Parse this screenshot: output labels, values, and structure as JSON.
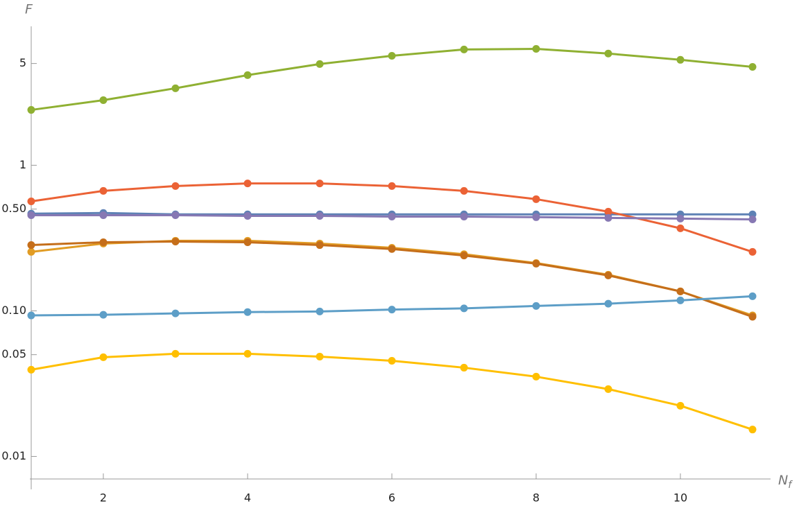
{
  "chart_data": {
    "type": "line",
    "xlabel": "N",
    "xlabel_sub": "f",
    "ylabel": "F",
    "log_y": true,
    "x": [
      1,
      2,
      3,
      4,
      5,
      6,
      7,
      8,
      9,
      10,
      11
    ],
    "xlim": [
      1,
      11.25
    ],
    "xticks": [
      2,
      4,
      6,
      8,
      10
    ],
    "ylim": [
      0.007,
      9
    ],
    "yticks": [
      0.01,
      0.05,
      {
        "value": 0.1,
        "label": "0.10"
      },
      {
        "value": 0.5,
        "label": "0.50"
      },
      1,
      5
    ],
    "series": [
      {
        "color": "#5E81B5",
        "values": [
          0.465,
          0.47,
          0.46,
          0.46,
          0.46,
          0.46,
          0.46,
          0.46,
          0.46,
          0.46,
          0.46
        ]
      },
      {
        "color": "#E19C24",
        "values": [
          0.254,
          0.29,
          0.303,
          0.303,
          0.29,
          0.271,
          0.245,
          0.213,
          0.177,
          0.136,
          0.093
        ]
      },
      {
        "color": "#8FB032",
        "values": [
          2.4,
          2.8,
          3.38,
          4.16,
          4.96,
          5.65,
          6.24,
          6.3,
          5.85,
          5.3,
          4.74
        ]
      },
      {
        "color": "#EB6235",
        "values": [
          0.565,
          0.667,
          0.72,
          0.75,
          0.75,
          0.72,
          0.667,
          0.585,
          0.48,
          0.369,
          0.254
        ]
      },
      {
        "color": "#8778B3",
        "values": [
          0.454,
          0.454,
          0.454,
          0.449,
          0.449,
          0.444,
          0.444,
          0.44,
          0.435,
          0.43,
          0.425
        ]
      },
      {
        "color": "#C56E1A",
        "values": [
          0.283,
          0.296,
          0.299,
          0.296,
          0.283,
          0.266,
          0.24,
          0.211,
          0.175,
          0.136,
          0.091
        ]
      },
      {
        "color": "#5D9EC7",
        "values": [
          0.093,
          0.094,
          0.096,
          0.098,
          0.099,
          0.102,
          0.104,
          0.108,
          0.112,
          0.118,
          0.126
        ]
      },
      {
        "color": "#FFBF00",
        "values": [
          0.0394,
          0.048,
          0.0507,
          0.0507,
          0.0485,
          0.0454,
          0.0407,
          0.0353,
          0.029,
          0.0223,
          0.0153
        ]
      }
    ]
  }
}
